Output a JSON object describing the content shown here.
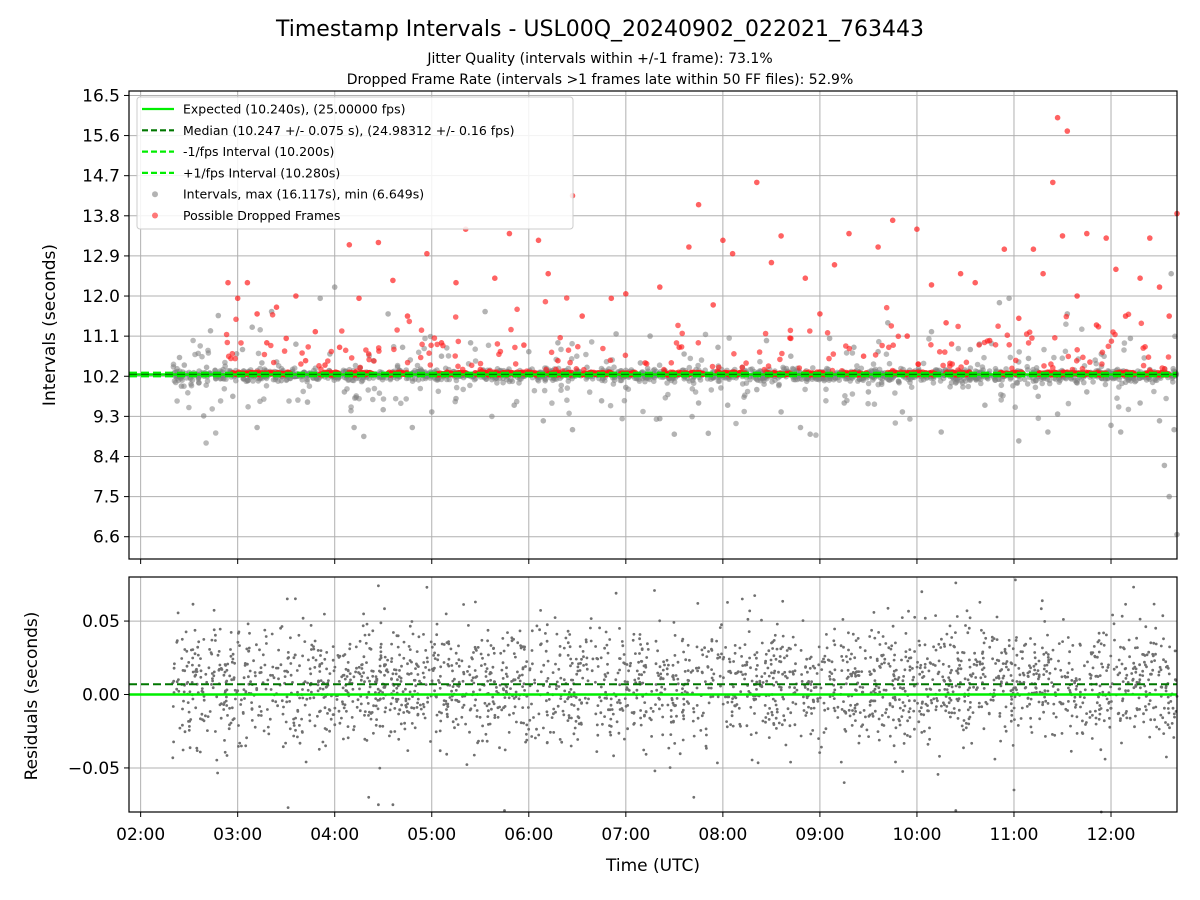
{
  "title": "Timestamp Intervals - USL00Q_20240902_022021_763443",
  "subtitle_1": "Jitter Quality (intervals within +/-1 frame): 73.1%",
  "subtitle_2": "Dropped Frame Rate (intervals >1 frames late within 50 FF files): 52.9%",
  "chart_data": [
    {
      "type": "scatter",
      "panel": "intervals",
      "ylabel": "Intervals (seconds)",
      "xlabel": "",
      "ylim": [
        6.1,
        16.6
      ],
      "yticks": [
        "16.5",
        "15.6",
        "14.7",
        "13.8",
        "12.9",
        "12.0",
        "11.1",
        "10.2",
        "9.3",
        "8.4",
        "7.5",
        "6.6"
      ],
      "ytick_values": [
        16.5,
        15.6,
        14.7,
        13.8,
        12.9,
        12.0,
        11.1,
        10.2,
        9.3,
        8.4,
        7.5,
        6.6
      ],
      "xlim_hours": [
        1.88,
        12.68
      ],
      "grid": true,
      "legend_placement": "upper-left",
      "legend": [
        {
          "label": "Expected (10.240s), (25.00000 fps)",
          "style": "solid-line",
          "color": "#00ee00"
        },
        {
          "label": "Median (10.247 +/- 0.075 s), (24.98312 +/- 0.16 fps)",
          "style": "dashed-line",
          "color": "#007700"
        },
        {
          "label": "-1/fps Interval (10.200s)",
          "style": "dashed-line",
          "color": "#00ee00"
        },
        {
          "label": "+1/fps Interval (10.280s)",
          "style": "dashed-line",
          "color": "#00ee00"
        },
        {
          "label": "Intervals, max (16.117s), min (6.649s)",
          "style": "marker",
          "color": "#808080"
        },
        {
          "label": "Possible Dropped Frames",
          "style": "marker",
          "color": "#ff2020"
        }
      ],
      "lines": {
        "expected": 10.24,
        "median": 10.247,
        "minus_one_fps": 10.2,
        "plus_one_fps": 10.28
      },
      "series": [
        {
          "name": "Intervals, max (16.117s), min (6.649s)",
          "color": "#808080",
          "points": [
            [
              2.4,
              10.62
            ],
            [
              2.42,
              9.98
            ],
            [
              2.45,
              10.45
            ],
            [
              2.6,
              10.05
            ],
            [
              2.65,
              9.31
            ],
            [
              2.68,
              10.4
            ],
            [
              2.72,
              11.22
            ],
            [
              2.8,
              11.56
            ],
            [
              2.85,
              10.35
            ],
            [
              2.95,
              9.75
            ],
            [
              3.05,
              10.8
            ],
            [
              3.15,
              11.3
            ],
            [
              3.2,
              9.05
            ],
            [
              3.25,
              10.5
            ],
            [
              3.35,
              11.65
            ],
            [
              3.45,
              10.1
            ],
            [
              3.6,
              10.92
            ],
            [
              3.72,
              9.62
            ],
            [
              3.85,
              11.95
            ],
            [
              3.95,
              10.7
            ],
            [
              4.0,
              12.2
            ],
            [
              4.1,
              9.85
            ],
            [
              4.2,
              9.05
            ],
            [
              4.3,
              8.85
            ],
            [
              4.4,
              10.55
            ],
            [
              4.5,
              9.45
            ],
            [
              4.55,
              11.6
            ],
            [
              4.7,
              10.85
            ],
            [
              4.8,
              9.05
            ],
            [
              4.9,
              10.3
            ],
            [
              5.0,
              9.4
            ],
            [
              5.1,
              10.65
            ],
            [
              5.25,
              9.7
            ],
            [
              5.4,
              10.95
            ],
            [
              5.55,
              11.65
            ],
            [
              5.7,
              10.15
            ],
            [
              5.85,
              9.55
            ],
            [
              6.0,
              10.75
            ],
            [
              6.15,
              9.2
            ],
            [
              6.3,
              10.95
            ],
            [
              6.45,
              9.0
            ],
            [
              6.6,
              10.4
            ],
            [
              6.75,
              9.65
            ],
            [
              6.9,
              11.15
            ],
            [
              7.0,
              9.95
            ],
            [
              7.15,
              10.5
            ],
            [
              7.25,
              11.1
            ],
            [
              7.35,
              9.25
            ],
            [
              7.5,
              8.9
            ],
            [
              7.6,
              10.7
            ],
            [
              7.75,
              9.6
            ],
            [
              7.85,
              8.92
            ],
            [
              7.95,
              10.85
            ],
            [
              8.05,
              9.55
            ],
            [
              8.2,
              10.4
            ],
            [
              8.35,
              9.9
            ],
            [
              8.45,
              11.0
            ],
            [
              8.6,
              9.4
            ],
            [
              8.7,
              10.65
            ],
            [
              8.8,
              9.05
            ],
            [
              8.9,
              8.9
            ],
            [
              9.0,
              10.3
            ],
            [
              9.1,
              11.05
            ],
            [
              9.25,
              9.6
            ],
            [
              9.35,
              10.85
            ],
            [
              9.5,
              9.85
            ],
            [
              9.6,
              10.75
            ],
            [
              9.7,
              11.4
            ],
            [
              9.85,
              9.4
            ],
            [
              10.0,
              10.25
            ],
            [
              10.15,
              11.2
            ],
            [
              10.25,
              8.95
            ],
            [
              10.4,
              10.05
            ],
            [
              10.55,
              10.8
            ],
            [
              10.7,
              9.55
            ],
            [
              10.85,
              11.85
            ],
            [
              10.95,
              11.95
            ],
            [
              11.05,
              8.75
            ],
            [
              11.15,
              10.6
            ],
            [
              11.25,
              9.75
            ],
            [
              11.35,
              8.95
            ],
            [
              11.45,
              9.35
            ],
            [
              11.55,
              11.6
            ],
            [
              11.65,
              10.05
            ],
            [
              11.75,
              9.85
            ],
            [
              11.9,
              10.7
            ],
            [
              12.0,
              9.1
            ],
            [
              12.1,
              8.95
            ],
            [
              12.2,
              11.05
            ],
            [
              12.3,
              9.6
            ],
            [
              12.4,
              10.35
            ],
            [
              12.5,
              9.2
            ],
            [
              12.55,
              8.2
            ],
            [
              12.6,
              7.5
            ],
            [
              12.62,
              12.5
            ],
            [
              12.65,
              9.0
            ],
            [
              12.68,
              6.65
            ]
          ]
        },
        {
          "name": "Possible Dropped Frames",
          "color": "#ff2020",
          "points": [
            [
              2.9,
              12.3
            ],
            [
              3.0,
              11.95
            ],
            [
              3.1,
              12.3
            ],
            [
              3.2,
              11.6
            ],
            [
              3.3,
              10.95
            ],
            [
              3.4,
              11.75
            ],
            [
              3.5,
              11.05
            ],
            [
              3.6,
              12.0
            ],
            [
              3.7,
              10.55
            ],
            [
              3.8,
              11.2
            ],
            [
              3.9,
              10.45
            ],
            [
              4.05,
              10.85
            ],
            [
              4.15,
              13.15
            ],
            [
              4.25,
              11.95
            ],
            [
              4.35,
              10.7
            ],
            [
              4.45,
              13.2
            ],
            [
              4.6,
              12.35
            ],
            [
              4.75,
              11.55
            ],
            [
              4.95,
              12.95
            ],
            [
              5.1,
              10.95
            ],
            [
              5.25,
              12.3
            ],
            [
              5.35,
              13.5
            ],
            [
              5.5,
              10.35
            ],
            [
              5.65,
              12.4
            ],
            [
              5.8,
              13.4
            ],
            [
              5.95,
              10.9
            ],
            [
              6.1,
              13.25
            ],
            [
              6.2,
              12.5
            ],
            [
              6.3,
              10.55
            ],
            [
              6.45,
              14.25
            ],
            [
              6.55,
              11.55
            ],
            [
              6.7,
              10.25
            ],
            [
              6.85,
              11.95
            ],
            [
              7.0,
              12.05
            ],
            [
              7.2,
              10.5
            ],
            [
              7.35,
              12.2
            ],
            [
              7.55,
              10.85
            ],
            [
              7.65,
              13.1
            ],
            [
              7.75,
              14.05
            ],
            [
              7.9,
              11.8
            ],
            [
              8.0,
              13.25
            ],
            [
              8.1,
              12.95
            ],
            [
              8.2,
              10.4
            ],
            [
              8.35,
              14.55
            ],
            [
              8.5,
              12.75
            ],
            [
              8.6,
              13.35
            ],
            [
              8.7,
              11.05
            ],
            [
              8.85,
              12.4
            ],
            [
              9.0,
              11.6
            ],
            [
              9.15,
              12.7
            ],
            [
              9.3,
              13.4
            ],
            [
              9.45,
              10.65
            ],
            [
              9.6,
              13.1
            ],
            [
              9.75,
              13.7
            ],
            [
              9.9,
              11.1
            ],
            [
              10.0,
              13.5
            ],
            [
              10.15,
              12.25
            ],
            [
              10.3,
              11.4
            ],
            [
              10.45,
              12.5
            ],
            [
              10.6,
              12.3
            ],
            [
              10.75,
              11.0
            ],
            [
              10.9,
              13.05
            ],
            [
              11.05,
              11.5
            ],
            [
              11.2,
              13.05
            ],
            [
              11.3,
              12.5
            ],
            [
              11.4,
              14.55
            ],
            [
              11.45,
              16.0
            ],
            [
              11.5,
              13.35
            ],
            [
              11.55,
              15.7
            ],
            [
              11.65,
              12.0
            ],
            [
              11.75,
              13.4
            ],
            [
              11.85,
              11.35
            ],
            [
              11.95,
              13.3
            ],
            [
              12.05,
              12.6
            ],
            [
              12.15,
              11.55
            ],
            [
              12.3,
              12.4
            ],
            [
              12.4,
              13.3
            ],
            [
              12.5,
              12.2
            ],
            [
              12.6,
              11.55
            ],
            [
              12.68,
              13.85
            ]
          ]
        }
      ],
      "dropped_band": {
        "y": 10.26,
        "color": "#ff2020"
      },
      "normal_band_y_range": [
        9.85,
        10.6
      ]
    },
    {
      "type": "scatter",
      "panel": "residuals",
      "ylabel": "Residuals (seconds)",
      "xlabel": "Time (UTC)",
      "ylim": [
        -0.08,
        0.08
      ],
      "yticks": [
        "0.05",
        "0.00",
        "−0.05"
      ],
      "ytick_values": [
        0.05,
        0.0,
        -0.05
      ],
      "xticks": [
        "02:00",
        "03:00",
        "04:00",
        "05:00",
        "06:00",
        "07:00",
        "08:00",
        "09:00",
        "10:00",
        "11:00",
        "12:00"
      ],
      "xtick_values": [
        2,
        3,
        4,
        5,
        6,
        7,
        8,
        9,
        10,
        11,
        12
      ],
      "xlim_hours": [
        1.88,
        12.68
      ],
      "x_data_range_hours": [
        2.33,
        12.68
      ],
      "grid": true,
      "lines": {
        "expected": 0.0,
        "median": 0.007
      },
      "series": [
        {
          "name": "",
          "color": "#707070",
          "n_points": 2500,
          "typical_spread": 0.02,
          "outliers": [
            [
              3.52,
              -0.077
            ],
            [
              4.35,
              -0.07
            ],
            [
              4.45,
              -0.075
            ],
            [
              4.6,
              -0.075
            ],
            [
              4.45,
              0.074
            ],
            [
              4.95,
              0.073
            ],
            [
              5.45,
              0.063
            ],
            [
              5.75,
              -0.079
            ],
            [
              7.7,
              -0.07
            ],
            [
              7.3,
              -0.052
            ],
            [
              10.4,
              0.076
            ],
            [
              10.4,
              -0.079
            ],
            [
              11.0,
              -0.065
            ],
            [
              11.9,
              -0.08
            ],
            [
              9.25,
              -0.06
            ],
            [
              10.05,
              0.07
            ],
            [
              6.9,
              0.069
            ],
            [
              8.2,
              0.065
            ]
          ]
        }
      ]
    }
  ]
}
